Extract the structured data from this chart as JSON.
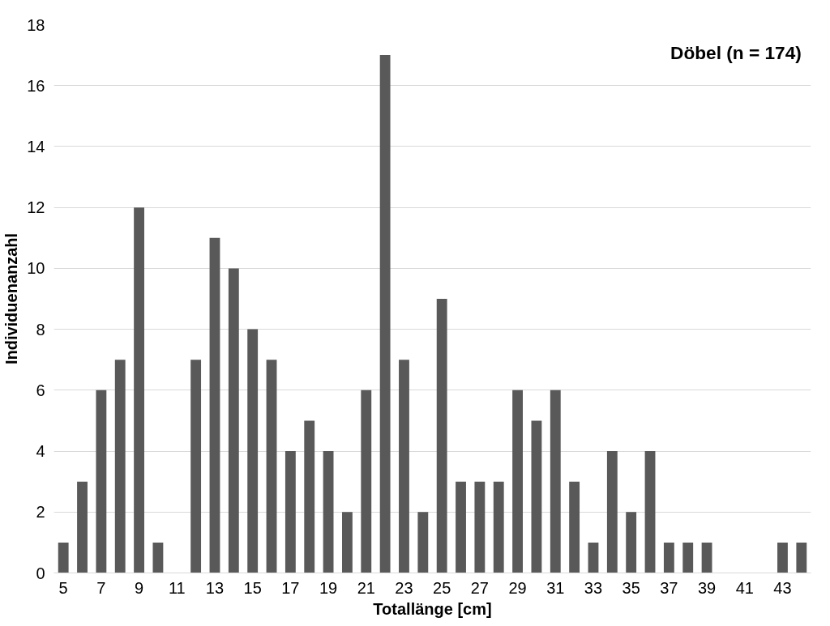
{
  "chart_data": {
    "type": "bar",
    "title": "Döbel (n = 174)",
    "xlabel": "Totallänge [cm]",
    "ylabel": "Individuenanzahl",
    "categories": [
      "5",
      null,
      "7",
      null,
      "9",
      null,
      "11",
      null,
      "13",
      null,
      "15",
      null,
      "17",
      null,
      "19",
      null,
      "21",
      null,
      "23",
      null,
      "25",
      null,
      "27",
      null,
      "29",
      null,
      "31",
      null,
      "33",
      null,
      "35",
      null,
      "37",
      null,
      "39",
      null,
      "41",
      null,
      "43",
      null
    ],
    "values": [
      1,
      3,
      6,
      7,
      12,
      1,
      0,
      7,
      11,
      10,
      8,
      7,
      4,
      5,
      4,
      2,
      6,
      17,
      7,
      2,
      9,
      3,
      3,
      3,
      6,
      5,
      6,
      3,
      1,
      4,
      2,
      4,
      1,
      1,
      1,
      0,
      0,
      0,
      1,
      1
    ],
    "color": "#595959",
    "ylim": [
      0,
      18
    ],
    "yticks": [
      0,
      2,
      4,
      6,
      8,
      10,
      12,
      14,
      16,
      18
    ],
    "grid": "y"
  }
}
